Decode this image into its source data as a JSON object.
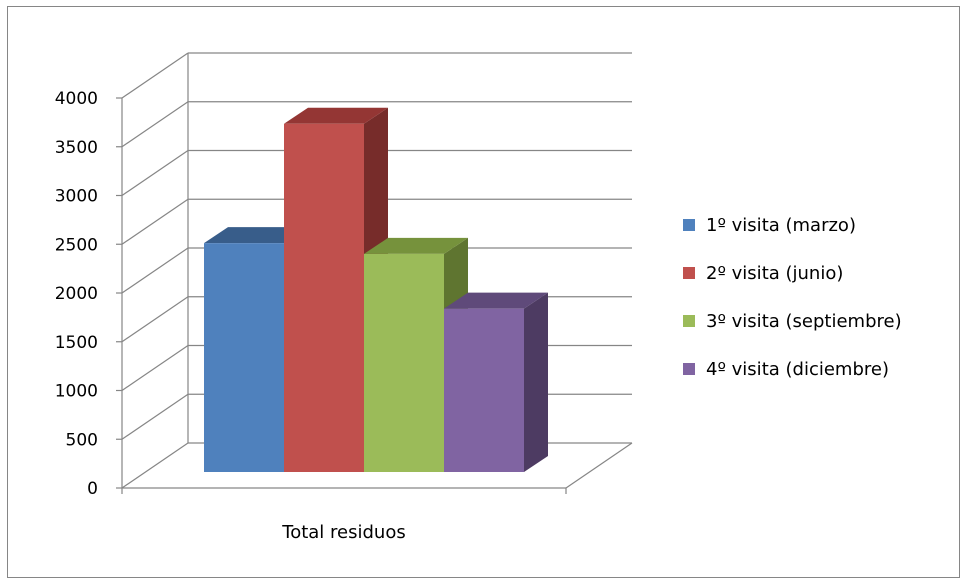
{
  "chart_data": {
    "type": "bar",
    "categories": [
      "Total residuos"
    ],
    "series": [
      {
        "name": "1º visita (marzo)",
        "values": [
          2550
        ],
        "color": "#4F81BD",
        "top": "#385D8A",
        "side": "#2C4D75"
      },
      {
        "name": "2º visita (junio)",
        "values": [
          3880
        ],
        "color": "#C0504D",
        "top": "#943634",
        "side": "#772C2A"
      },
      {
        "name": "3º visita (septiembre)",
        "values": [
          2430
        ],
        "color": "#9BBB59",
        "top": "#76923C",
        "side": "#5F7530"
      },
      {
        "name": "4º visita (diciembre)",
        "values": [
          1820
        ],
        "color": "#8064A2",
        "top": "#5F4A7A",
        "side": "#4D3B62"
      }
    ],
    "yticks": [
      "0",
      "500",
      "1000",
      "1500",
      "2000",
      "2500",
      "3000",
      "3500",
      "4000"
    ],
    "ylim": [
      0,
      4000
    ],
    "grid": true,
    "legend": "right",
    "three_d": true,
    "gridline_color": "#868686"
  }
}
